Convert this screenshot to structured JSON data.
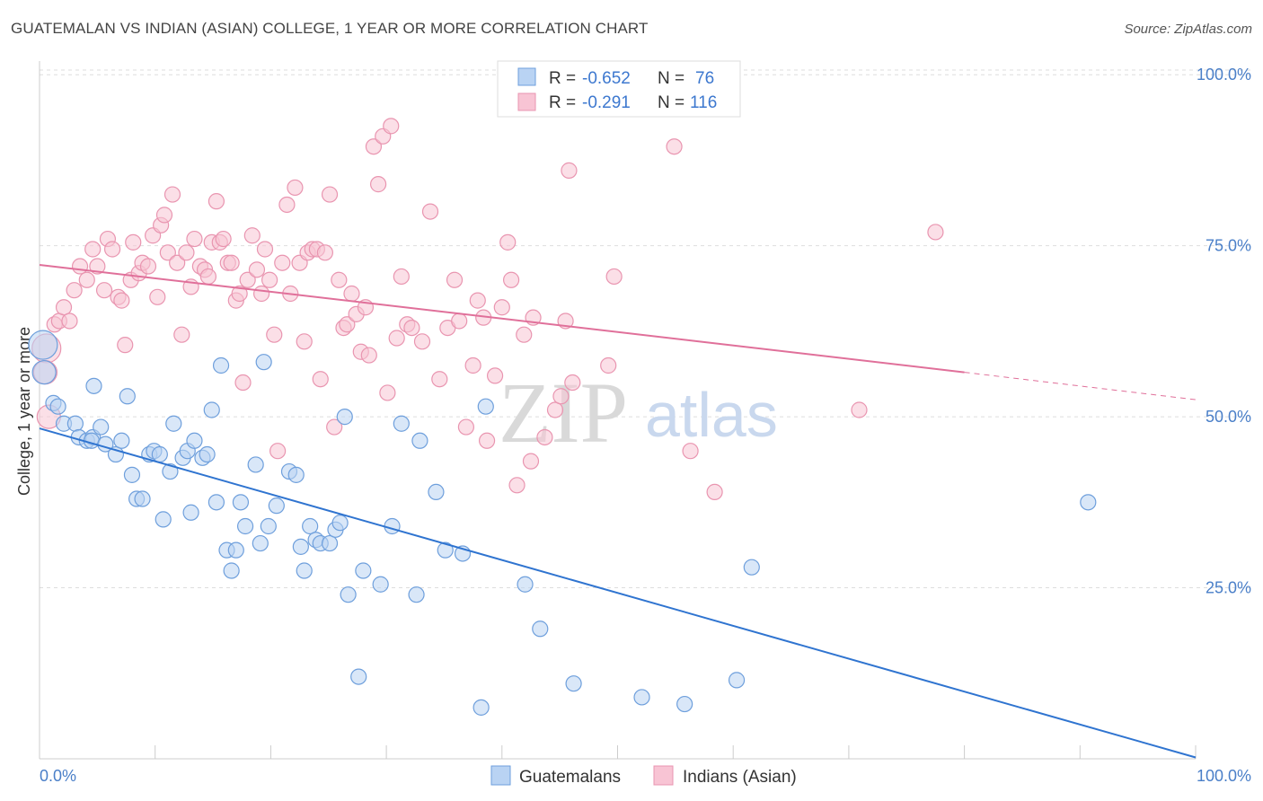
{
  "header": {
    "title": "GUATEMALAN VS INDIAN (ASIAN) COLLEGE, 1 YEAR OR MORE CORRELATION CHART",
    "source": "Source: ZipAtlas.com"
  },
  "watermark": {
    "zip": "ZIP",
    "atlas": "atlas"
  },
  "stats": [
    {
      "r_label": "R =",
      "r_value": "-0.652",
      "n_label": "N =",
      "n_value": "76",
      "color": "#5b8fd6"
    },
    {
      "r_label": "R =",
      "r_value": "-0.291",
      "n_label": "N =",
      "n_value": "116",
      "color": "#e87ea1"
    }
  ],
  "colors": {
    "blue_fill": "#b9d3f3",
    "blue_stroke": "#6e9fdc",
    "blue_line": "#2f74d0",
    "pink_fill": "#f8c4d4",
    "pink_stroke": "#e995b0",
    "pink_line": "#e0709a",
    "tick_text": "#4a7fc8",
    "grid": "#dddddd"
  },
  "chart_data": {
    "type": "scatter",
    "title": "GUATEMALAN VS INDIAN (ASIAN) COLLEGE, 1 YEAR OR MORE CORRELATION CHART",
    "xlabel": "",
    "ylabel": "College, 1 year or more",
    "xlim": [
      0,
      100
    ],
    "ylim": [
      0,
      102
    ],
    "x_tick_labels": [
      "0.0%",
      "100.0%"
    ],
    "y_ticks": [
      25,
      50,
      75,
      100
    ],
    "y_tick_labels": [
      "25.0%",
      "50.0%",
      "75.0%",
      "100.0%"
    ],
    "grid": true,
    "legend_position": "bottom-center",
    "series": [
      {
        "name": "Guatemalans",
        "color": "#6e9fdc",
        "trend": {
          "x": [
            0,
            100
          ],
          "y": [
            48.3,
            0.2
          ]
        },
        "points": [
          [
            0.3,
            60.5
          ],
          [
            0.4,
            56.5
          ],
          [
            1.2,
            52.0
          ],
          [
            1.6,
            51.5
          ],
          [
            2.1,
            49.0
          ],
          [
            3.1,
            49.0
          ],
          [
            3.4,
            47.0
          ],
          [
            4.1,
            46.5
          ],
          [
            4.6,
            47.0
          ],
          [
            4.5,
            46.5
          ],
          [
            4.7,
            54.5
          ],
          [
            5.3,
            48.5
          ],
          [
            5.7,
            46.0
          ],
          [
            6.6,
            44.5
          ],
          [
            7.1,
            46.5
          ],
          [
            7.6,
            53.0
          ],
          [
            8.0,
            41.5
          ],
          [
            8.4,
            38.0
          ],
          [
            8.9,
            38.0
          ],
          [
            9.5,
            44.5
          ],
          [
            9.9,
            45.0
          ],
          [
            10.4,
            44.5
          ],
          [
            10.7,
            35.0
          ],
          [
            11.3,
            42.0
          ],
          [
            11.6,
            49.0
          ],
          [
            12.4,
            44.0
          ],
          [
            12.8,
            45.0
          ],
          [
            13.1,
            36.0
          ],
          [
            13.4,
            46.5
          ],
          [
            14.1,
            44.0
          ],
          [
            14.5,
            44.5
          ],
          [
            14.9,
            51.0
          ],
          [
            15.3,
            37.5
          ],
          [
            15.7,
            57.5
          ],
          [
            16.2,
            30.5
          ],
          [
            16.6,
            27.5
          ],
          [
            17.0,
            30.5
          ],
          [
            17.4,
            37.5
          ],
          [
            17.8,
            34.0
          ],
          [
            18.7,
            43.0
          ],
          [
            19.1,
            31.5
          ],
          [
            19.4,
            58.0
          ],
          [
            19.8,
            34.0
          ],
          [
            20.5,
            37.0
          ],
          [
            21.6,
            42.0
          ],
          [
            22.2,
            41.5
          ],
          [
            22.6,
            31.0
          ],
          [
            22.9,
            27.5
          ],
          [
            23.4,
            34.0
          ],
          [
            23.9,
            32.0
          ],
          [
            24.3,
            31.5
          ],
          [
            25.1,
            31.5
          ],
          [
            25.6,
            33.5
          ],
          [
            26.0,
            34.5
          ],
          [
            26.4,
            50.0
          ],
          [
            26.7,
            24.0
          ],
          [
            27.6,
            12.0
          ],
          [
            28.0,
            27.5
          ],
          [
            29.5,
            25.5
          ],
          [
            30.5,
            34.0
          ],
          [
            31.3,
            49.0
          ],
          [
            32.6,
            24.0
          ],
          [
            32.9,
            46.5
          ],
          [
            34.3,
            39.0
          ],
          [
            35.1,
            30.5
          ],
          [
            36.6,
            30.0
          ],
          [
            38.2,
            7.5
          ],
          [
            38.6,
            51.5
          ],
          [
            42.0,
            25.5
          ],
          [
            43.3,
            19.0
          ],
          [
            46.2,
            11.0
          ],
          [
            52.1,
            9.0
          ],
          [
            55.8,
            8.0
          ],
          [
            60.3,
            11.5
          ],
          [
            61.6,
            28.0
          ],
          [
            90.7,
            37.5
          ]
        ]
      },
      {
        "name": "Indians (Asian)",
        "color": "#e995b0",
        "trend": {
          "x": [
            0,
            80
          ],
          "y": [
            72.2,
            56.5
          ]
        },
        "trend_dashed": {
          "x": [
            80,
            100
          ],
          "y": [
            56.5,
            52.5
          ]
        },
        "points": [
          [
            0.6,
            60.0
          ],
          [
            0.5,
            56.5
          ],
          [
            0.8,
            50.0
          ],
          [
            1.3,
            63.5
          ],
          [
            1.7,
            64.0
          ],
          [
            2.1,
            66.0
          ],
          [
            2.6,
            64.0
          ],
          [
            3.0,
            68.5
          ],
          [
            3.5,
            72.0
          ],
          [
            4.1,
            70.0
          ],
          [
            4.6,
            74.5
          ],
          [
            5.0,
            72.0
          ],
          [
            5.6,
            68.5
          ],
          [
            5.9,
            76.0
          ],
          [
            6.3,
            74.5
          ],
          [
            6.8,
            67.5
          ],
          [
            7.1,
            67.0
          ],
          [
            7.4,
            60.5
          ],
          [
            7.9,
            70.0
          ],
          [
            8.1,
            75.5
          ],
          [
            8.6,
            71.0
          ],
          [
            8.9,
            72.5
          ],
          [
            9.4,
            72.0
          ],
          [
            9.8,
            76.5
          ],
          [
            10.2,
            67.5
          ],
          [
            10.5,
            78.0
          ],
          [
            10.8,
            79.5
          ],
          [
            11.1,
            74.0
          ],
          [
            11.5,
            82.5
          ],
          [
            11.9,
            72.5
          ],
          [
            12.3,
            62.0
          ],
          [
            12.7,
            74.0
          ],
          [
            13.1,
            69.0
          ],
          [
            13.4,
            76.0
          ],
          [
            13.9,
            72.0
          ],
          [
            14.3,
            71.5
          ],
          [
            14.6,
            70.5
          ],
          [
            14.9,
            75.5
          ],
          [
            15.3,
            81.5
          ],
          [
            15.6,
            75.5
          ],
          [
            15.9,
            76.0
          ],
          [
            16.3,
            72.5
          ],
          [
            16.6,
            72.5
          ],
          [
            17.0,
            67.0
          ],
          [
            17.3,
            68.0
          ],
          [
            17.6,
            55.0
          ],
          [
            18.0,
            70.0
          ],
          [
            18.4,
            76.5
          ],
          [
            18.8,
            71.5
          ],
          [
            19.2,
            68.0
          ],
          [
            19.5,
            74.5
          ],
          [
            19.9,
            70.0
          ],
          [
            20.3,
            62.0
          ],
          [
            20.6,
            45.0
          ],
          [
            21.0,
            72.5
          ],
          [
            21.4,
            81.0
          ],
          [
            21.7,
            68.0
          ],
          [
            22.1,
            83.5
          ],
          [
            22.5,
            72.5
          ],
          [
            22.9,
            61.0
          ],
          [
            23.2,
            74.0
          ],
          [
            23.6,
            74.5
          ],
          [
            24.0,
            74.5
          ],
          [
            24.3,
            55.5
          ],
          [
            24.7,
            74.0
          ],
          [
            25.1,
            82.5
          ],
          [
            25.5,
            48.5
          ],
          [
            25.9,
            70.0
          ],
          [
            26.3,
            63.0
          ],
          [
            26.6,
            63.5
          ],
          [
            27.0,
            68.0
          ],
          [
            27.4,
            65.0
          ],
          [
            27.8,
            59.5
          ],
          [
            28.2,
            66.0
          ],
          [
            28.5,
            59.0
          ],
          [
            28.9,
            89.5
          ],
          [
            29.3,
            84.0
          ],
          [
            29.7,
            91.0
          ],
          [
            30.1,
            53.5
          ],
          [
            30.4,
            92.5
          ],
          [
            30.9,
            61.5
          ],
          [
            31.3,
            70.5
          ],
          [
            31.8,
            63.5
          ],
          [
            32.2,
            63.0
          ],
          [
            33.1,
            61.0
          ],
          [
            33.8,
            80.0
          ],
          [
            34.6,
            55.5
          ],
          [
            35.3,
            63.0
          ],
          [
            35.9,
            70.0
          ],
          [
            36.3,
            64.0
          ],
          [
            36.9,
            48.5
          ],
          [
            37.5,
            57.5
          ],
          [
            37.9,
            67.0
          ],
          [
            38.4,
            64.5
          ],
          [
            38.7,
            46.5
          ],
          [
            39.4,
            56.0
          ],
          [
            40.0,
            66.0
          ],
          [
            40.5,
            75.5
          ],
          [
            40.8,
            70.0
          ],
          [
            41.3,
            40.0
          ],
          [
            41.9,
            62.0
          ],
          [
            42.5,
            43.5
          ],
          [
            42.7,
            64.5
          ],
          [
            43.7,
            47.0
          ],
          [
            44.6,
            51.0
          ],
          [
            45.1,
            53.0
          ],
          [
            45.5,
            64.0
          ],
          [
            45.8,
            86.0
          ],
          [
            46.1,
            55.0
          ],
          [
            49.2,
            57.5
          ],
          [
            49.7,
            70.5
          ],
          [
            54.9,
            89.5
          ],
          [
            56.3,
            45.0
          ],
          [
            58.4,
            39.0
          ],
          [
            70.9,
            51.0
          ],
          [
            77.5,
            77.0
          ]
        ]
      }
    ]
  },
  "legend": {
    "items": [
      {
        "label": "Guatemalans"
      },
      {
        "label": "Indians (Asian)"
      }
    ]
  },
  "axes": {
    "y_label": "College, 1 year or more",
    "x_left": "0.0%",
    "x_right": "100.0%"
  }
}
